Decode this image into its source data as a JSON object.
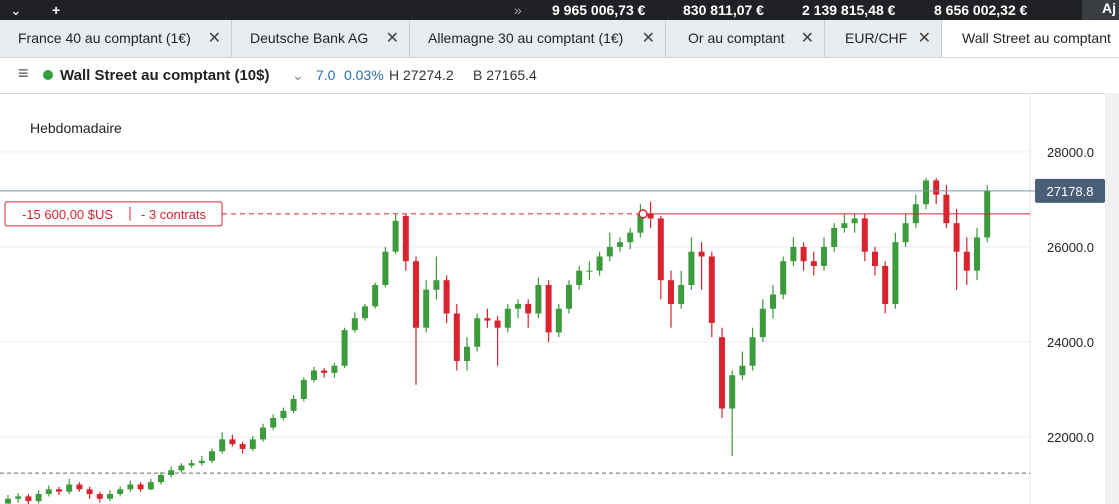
{
  "top_bar": {
    "values": [
      "9 965 006,73 €",
      "830 811,07 €",
      "2 139 815,48 €",
      "8 656 002,32 €"
    ],
    "button": "Aj"
  },
  "tabs": [
    "France 40 au comptant (1€)",
    "Deutsche Bank AG",
    "Allemagne 30 au comptant (1€)",
    "Or au comptant",
    "EUR/CHF",
    "Wall Street au comptant"
  ],
  "instrument": {
    "name": "Wall Street au comptant (10$)",
    "change": "7.0",
    "change_pct": "0.03%",
    "high": "H 27274.2",
    "low": "B 27165.4"
  },
  "chart_data": {
    "type": "candlestick",
    "title": "Hebdomadaire",
    "up_color": "#3c9b3c",
    "down_color": "#d9232e",
    "candles": [
      [
        20600,
        20780,
        20550,
        20700
      ],
      [
        20700,
        20820,
        20620,
        20750
      ],
      [
        20750,
        20800,
        20580,
        20650
      ],
      [
        20650,
        20880,
        20600,
        20800
      ],
      [
        20800,
        20980,
        20750,
        20900
      ],
      [
        20900,
        20950,
        20780,
        20850
      ],
      [
        20850,
        21120,
        20800,
        21000
      ],
      [
        21000,
        21050,
        20850,
        20900
      ],
      [
        20900,
        20950,
        20700,
        20800
      ],
      [
        20800,
        20850,
        20620,
        20700
      ],
      [
        20700,
        20880,
        20650,
        20800
      ],
      [
        20800,
        20960,
        20750,
        20900
      ],
      [
        20900,
        21080,
        20850,
        21000
      ],
      [
        21000,
        21050,
        20850,
        20900
      ],
      [
        20900,
        21120,
        20880,
        21050
      ],
      [
        21050,
        21260,
        21000,
        21200
      ],
      [
        21200,
        21380,
        21150,
        21300
      ],
      [
        21300,
        21450,
        21250,
        21400
      ],
      [
        21400,
        21520,
        21350,
        21450
      ],
      [
        21450,
        21600,
        21400,
        21500
      ],
      [
        21500,
        21760,
        21450,
        21700
      ],
      [
        21700,
        22100,
        21650,
        21950
      ],
      [
        21950,
        22050,
        21800,
        21850
      ],
      [
        21850,
        21900,
        21650,
        21750
      ],
      [
        21750,
        22020,
        21700,
        21950
      ],
      [
        21950,
        22280,
        21900,
        22200
      ],
      [
        22200,
        22480,
        22150,
        22400
      ],
      [
        22400,
        22620,
        22350,
        22550
      ],
      [
        22550,
        22880,
        22500,
        22800
      ],
      [
        22800,
        23260,
        22750,
        23200
      ],
      [
        23200,
        23480,
        23150,
        23400
      ],
      [
        23400,
        23450,
        23250,
        23350
      ],
      [
        23350,
        23560,
        23250,
        23500
      ],
      [
        23500,
        24300,
        23450,
        24250
      ],
      [
        24250,
        24620,
        24200,
        24500
      ],
      [
        24500,
        24800,
        24450,
        24750
      ],
      [
        24750,
        25250,
        24700,
        25200
      ],
      [
        25200,
        26000,
        25150,
        25900
      ],
      [
        25900,
        26680,
        25850,
        26550
      ],
      [
        26650,
        26700,
        25500,
        25700
      ],
      [
        25700,
        25800,
        23100,
        24300
      ],
      [
        24300,
        25300,
        24200,
        25100
      ],
      [
        25100,
        25800,
        24900,
        25300
      ],
      [
        25300,
        25400,
        24400,
        24600
      ],
      [
        24600,
        24800,
        23400,
        23600
      ],
      [
        23600,
        24100,
        23400,
        23900
      ],
      [
        23900,
        24600,
        23800,
        24500
      ],
      [
        24500,
        24700,
        24300,
        24450
      ],
      [
        24450,
        24550,
        23500,
        24300
      ],
      [
        24300,
        24800,
        24200,
        24700
      ],
      [
        24700,
        24900,
        24500,
        24800
      ],
      [
        24800,
        24900,
        24300,
        24600
      ],
      [
        24600,
        25350,
        24500,
        25200
      ],
      [
        25200,
        25300,
        24000,
        24200
      ],
      [
        24200,
        24800,
        24100,
        24700
      ],
      [
        24700,
        25300,
        24600,
        25200
      ],
      [
        25200,
        25600,
        25100,
        25500
      ],
      [
        25500,
        25700,
        25300,
        25500
      ],
      [
        25500,
        25900,
        25400,
        25800
      ],
      [
        25800,
        26300,
        25700,
        26000
      ],
      [
        26000,
        26200,
        25900,
        26100
      ],
      [
        26100,
        26400,
        25950,
        26300
      ],
      [
        26300,
        26900,
        26200,
        26700
      ],
      [
        26700,
        26950,
        26400,
        26600
      ],
      [
        26600,
        26650,
        24900,
        25300
      ],
      [
        25300,
        25500,
        24300,
        24800
      ],
      [
        24800,
        25500,
        24700,
        25200
      ],
      [
        25200,
        26200,
        25100,
        25900
      ],
      [
        25900,
        26100,
        25100,
        25800
      ],
      [
        25800,
        25900,
        24100,
        24400
      ],
      [
        24100,
        24300,
        22400,
        22600
      ],
      [
        22600,
        23400,
        21600,
        23300
      ],
      [
        23300,
        23800,
        23200,
        23500
      ],
      [
        23500,
        24300,
        23400,
        24100
      ],
      [
        24100,
        24900,
        24000,
        24700
      ],
      [
        24700,
        25200,
        24500,
        25000
      ],
      [
        25000,
        25800,
        24900,
        25700
      ],
      [
        25700,
        26200,
        25600,
        26000
      ],
      [
        26000,
        26100,
        25500,
        25700
      ],
      [
        25700,
        25900,
        25400,
        25600
      ],
      [
        25600,
        26200,
        25500,
        26000
      ],
      [
        26000,
        26500,
        25900,
        26400
      ],
      [
        26400,
        26700,
        26300,
        26500
      ],
      [
        26500,
        26700,
        26300,
        26600
      ],
      [
        26600,
        26700,
        25700,
        25900
      ],
      [
        25900,
        26000,
        25400,
        25600
      ],
      [
        25600,
        25700,
        24600,
        24800
      ],
      [
        24800,
        26300,
        24700,
        26100
      ],
      [
        26100,
        26700,
        26000,
        26500
      ],
      [
        26500,
        27100,
        26400,
        26900
      ],
      [
        26900,
        27450,
        26800,
        27400
      ],
      [
        27400,
        27450,
        26900,
        27100
      ],
      [
        27100,
        27300,
        26400,
        26500
      ],
      [
        26500,
        26800,
        25100,
        25900
      ],
      [
        25900,
        26200,
        25200,
        25500
      ],
      [
        25500,
        26400,
        25300,
        26200
      ],
      [
        26200,
        27300,
        26100,
        27180
      ]
    ],
    "ylim": [
      20590,
      29240
    ],
    "yticks": [
      {
        "value": 22000,
        "label": "22000.0"
      },
      {
        "value": 24000,
        "label": "24000.0"
      },
      {
        "value": 26000,
        "label": "26000.0"
      },
      {
        "value": 28000,
        "label": "28000.0"
      }
    ],
    "grid": true,
    "last_price": 27178.8,
    "position": {
      "value": 26695,
      "pnl": "-15 600,00 $US",
      "size": "- 3 contrats"
    },
    "order_line": 21240
  }
}
